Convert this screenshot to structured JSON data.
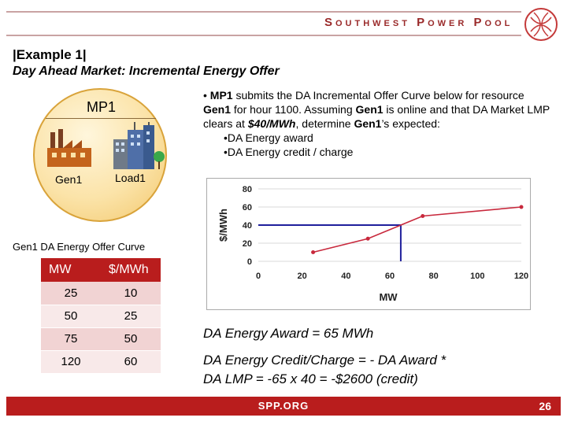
{
  "header": {
    "brand": "Southwest Power Pool",
    "example": "|Example 1|",
    "subtitle": "Day Ahead Market: Incremental Energy Offer"
  },
  "diagram": {
    "mp1": "MP1",
    "gen1": "Gen1",
    "load1": "Load1"
  },
  "bullets": {
    "main_prefix": "• ",
    "main_bold1": "MP1",
    "main_t1": " submits the DA Incremental Offer Curve below for resource ",
    "main_bold2": "Gen1",
    "main_t2": " for hour 1100. Assuming ",
    "main_bold3": "Gen1",
    "main_t3": " is online and that DA Market LMP clears at ",
    "main_em": "$40/MWh",
    "main_t4": ", determine ",
    "main_bold4": "Gen1",
    "main_t5": "’s expected:",
    "sub1": "•DA Energy award",
    "sub2": "•DA Energy credit / charge"
  },
  "chart_data": {
    "type": "line",
    "xlabel": "MW",
    "ylabel": "$/MWh",
    "x_ticks": [
      "0",
      "20",
      "40",
      "60",
      "80",
      "100",
      "120"
    ],
    "y_ticks": [
      "0",
      "20",
      "40",
      "60",
      "80"
    ],
    "xlim": [
      0,
      120
    ],
    "ylim": [
      0,
      80
    ],
    "series": [
      {
        "x": [
          25,
          50,
          75,
          120
        ],
        "y": [
          10,
          25,
          50,
          60
        ],
        "color": "#c8283c"
      }
    ],
    "lmp": 40,
    "award_mw": 65,
    "guide_color": "#1f1f9c"
  },
  "table": {
    "title": "Gen1 DA Energy Offer Curve",
    "headers": [
      "MW",
      "$/MWh"
    ],
    "rows": [
      [
        "25",
        "10"
      ],
      [
        "50",
        "25"
      ],
      [
        "75",
        "50"
      ],
      [
        "120",
        "60"
      ]
    ]
  },
  "results": {
    "award": "DA Energy Award = 65 MWh",
    "credit_line1": "DA Energy Credit/Charge =  - DA Award *",
    "credit_line2": "DA LMP =  -65 x 40 = -$2600 (credit)"
  },
  "footer": {
    "url": "SPP.ORG",
    "page": "26"
  },
  "colors": {
    "accent": "#b91d1d",
    "brand": "#9a2a2a"
  }
}
